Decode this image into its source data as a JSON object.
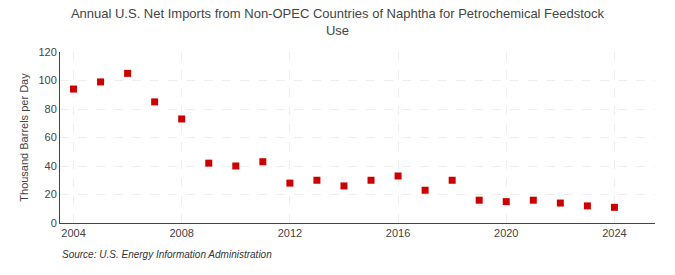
{
  "chart_data": {
    "type": "scatter",
    "title": "Annual U.S. Net Imports from Non-OPEC Countries of Naphtha for Petrochemical Feedstock\nUse",
    "ylabel": "Thousand Barrels per Day",
    "annotations": [
      "Source: U.S. Energy Information Administration"
    ],
    "x": [
      2004,
      2005,
      2006,
      2007,
      2008,
      2009,
      2010,
      2011,
      2012,
      2013,
      2014,
      2015,
      2016,
      2017,
      2018,
      2019,
      2020,
      2021,
      2022,
      2023,
      2024
    ],
    "values": [
      94,
      99,
      105,
      85,
      73,
      42,
      40,
      43,
      28,
      30,
      26,
      30,
      33,
      23,
      30,
      16,
      15,
      16,
      14,
      12,
      11
    ],
    "color": "#cc0000",
    "marker": "square",
    "xlim": [
      2003.5,
      2025.5
    ],
    "xticks": [
      2004,
      2008,
      2012,
      2016,
      2020,
      2024
    ],
    "ylim": [
      0,
      120
    ],
    "yticks": [
      0,
      20,
      40,
      60,
      80,
      100,
      120
    ],
    "grid": true
  }
}
